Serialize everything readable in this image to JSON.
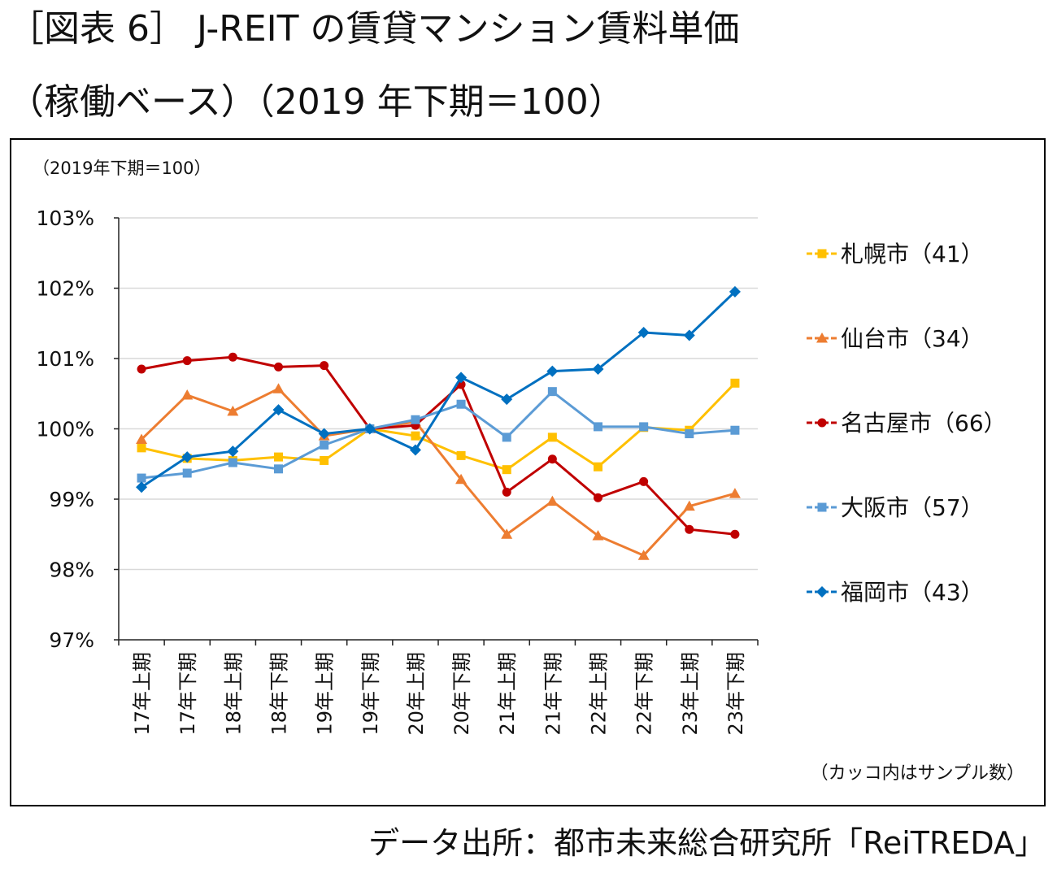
{
  "title_line1": "［図表 6］ J-REIT の賃貸マンション賃料単価",
  "title_line2": "（稼働ベース）（2019 年下期＝100）",
  "source": "データ出所：都市未来総合研究所「ReiTREDA」",
  "chart_data": {
    "type": "line",
    "unit_note": "（2019年下期＝100）",
    "sample_note": "（カッコ内はサンプル数）",
    "categories": [
      "17年上期",
      "17年下期",
      "18年上期",
      "18年下期",
      "19年上期",
      "19年下期",
      "20年上期",
      "20年下期",
      "21年上期",
      "21年下期",
      "22年上期",
      "22年下期",
      "23年上期",
      "23年下期"
    ],
    "yticks": [
      "97%",
      "98%",
      "99%",
      "100%",
      "101%",
      "102%",
      "103%"
    ],
    "ylim": [
      97,
      103
    ],
    "grid": true,
    "legend_position": "right",
    "series": [
      {
        "name": "札幌市（41）",
        "color": "#FFC000",
        "marker": "square",
        "values": [
          99.73,
          99.58,
          99.55,
          99.6,
          99.55,
          100.0,
          99.9,
          99.62,
          99.42,
          99.88,
          99.46,
          100.02,
          99.98,
          100.65
        ]
      },
      {
        "name": "仙台市（34）",
        "color": "#ED7D31",
        "marker": "triangle",
        "values": [
          99.85,
          100.48,
          100.25,
          100.57,
          99.9,
          100.0,
          100.1,
          99.28,
          98.5,
          98.97,
          98.48,
          98.2,
          98.9,
          99.08
        ]
      },
      {
        "name": "名古屋市（66）",
        "color": "#C00000",
        "marker": "circle",
        "values": [
          100.85,
          100.97,
          101.02,
          100.88,
          100.9,
          100.0,
          100.05,
          100.63,
          99.1,
          99.57,
          99.02,
          99.25,
          98.57,
          98.5
        ]
      },
      {
        "name": "大阪市（57）",
        "color": "#5B9BD5",
        "marker": "square",
        "values": [
          99.3,
          99.37,
          99.52,
          99.43,
          99.77,
          100.0,
          100.13,
          100.35,
          99.88,
          100.53,
          100.03,
          100.03,
          99.93,
          99.98
        ]
      },
      {
        "name": "福岡市（43）",
        "color": "#0070C0",
        "marker": "diamond",
        "values": [
          99.17,
          99.6,
          99.68,
          100.27,
          99.93,
          100.0,
          99.7,
          100.73,
          100.42,
          100.82,
          100.85,
          101.37,
          101.33,
          101.95
        ]
      }
    ]
  }
}
